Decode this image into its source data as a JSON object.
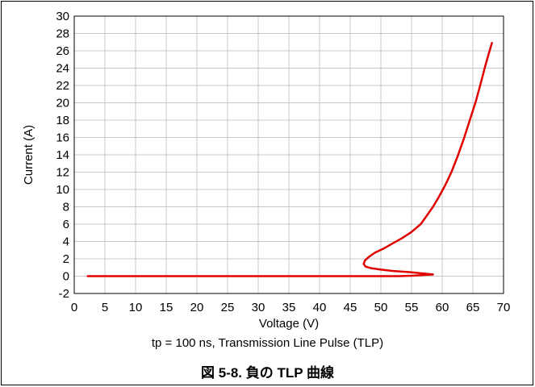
{
  "caption": "図 5-8. 負の TLP 曲線",
  "subtitle": "tp = 100 ns, Transmission Line Pulse (TLP)",
  "colors": {
    "series": "#e00000",
    "grid": "#c8c8c8",
    "axis": "#000000"
  },
  "chart_data": {
    "type": "line",
    "xlabel": "Voltage (V)",
    "ylabel": "Current (A)",
    "xlim": [
      0,
      70
    ],
    "ylim": [
      -2,
      30
    ],
    "xticks": [
      0,
      5,
      10,
      15,
      20,
      25,
      30,
      35,
      40,
      45,
      50,
      55,
      60,
      65,
      70
    ],
    "yticks": [
      -2,
      0,
      2,
      4,
      6,
      8,
      10,
      12,
      14,
      16,
      18,
      20,
      22,
      24,
      26,
      28,
      30
    ],
    "grid": true,
    "series": [
      {
        "x": [
          2.2,
          10,
          20,
          30,
          40,
          45,
          50,
          53,
          55,
          56.5,
          57.5,
          58.5,
          57,
          55,
          52,
          50,
          48.5,
          47.5,
          47.2,
          47.4,
          48,
          49,
          50.5,
          52,
          53.5,
          55,
          56.5,
          57.5,
          58.5,
          59.5,
          60.5,
          61.5,
          62.5,
          63.5,
          64.5,
          65.5,
          66.3,
          67,
          67.6,
          68.1
        ],
        "y": [
          0,
          0,
          0,
          0,
          0,
          0,
          0,
          0,
          0.05,
          0.1,
          0.15,
          0.2,
          0.3,
          0.45,
          0.6,
          0.75,
          0.9,
          1.1,
          1.4,
          1.8,
          2.2,
          2.7,
          3.2,
          3.8,
          4.4,
          5.1,
          6.0,
          7.0,
          8.0,
          9.2,
          10.5,
          12.0,
          13.8,
          15.8,
          18.0,
          20.2,
          22.3,
          24.2,
          25.7,
          26.9
        ]
      }
    ]
  }
}
